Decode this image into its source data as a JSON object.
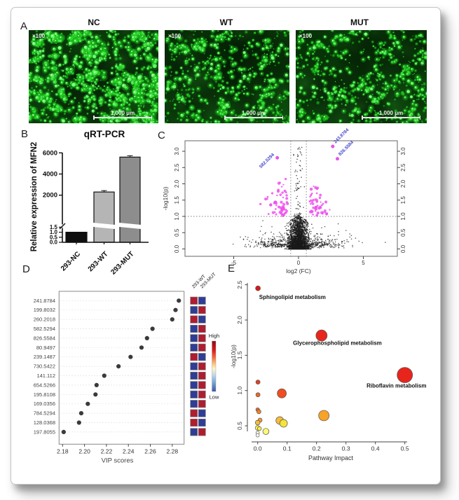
{
  "panel_labels": {
    "a": "A",
    "b": "B",
    "c": "C",
    "d": "D",
    "e": "E"
  },
  "panel_a": {
    "images": [
      {
        "title": "NC",
        "magnification": "×100",
        "scalebar": "1,000 μm",
        "seed": 11,
        "clusters": 130,
        "cluster_min": 2,
        "cluster_max": 12,
        "singles": 380,
        "brightness": 1.0
      },
      {
        "title": "WT",
        "magnification": "×100",
        "scalebar": "1,000 μm",
        "seed": 22,
        "clusters": 85,
        "cluster_min": 2,
        "cluster_max": 7,
        "singles": 300,
        "brightness": 0.85
      },
      {
        "title": "MUT",
        "magnification": "×100",
        "scalebar": "1,000 μm",
        "seed": 33,
        "clusters": 88,
        "cluster_min": 2,
        "cluster_max": 7,
        "singles": 300,
        "brightness": 0.85
      }
    ],
    "bg_dark": "#083808",
    "bg_light": "#0d4d0d",
    "dot_colors": [
      "#12b312",
      "#25d825",
      "#3cf23c",
      "#67ff67"
    ]
  },
  "chart_data": [
    {
      "id": "B",
      "type": "bar",
      "title": "qRT-PCR",
      "ylabel": "Relative expression of MFN2",
      "categories": [
        "293-NC",
        "293-WT",
        "293-MUT"
      ],
      "values": [
        1.0,
        2300,
        5600
      ],
      "errors": [
        0,
        40,
        120
      ],
      "bar_colors": [
        "#0f0f0f",
        "#b5b5b5",
        "#8d8d8d"
      ],
      "axis_break": {
        "lower_ticks": [
          "0.0",
          "0.5",
          "1.0",
          "1.5"
        ],
        "upper_ticks": [
          "2000",
          "4000",
          "6000"
        ],
        "lower_range": [
          0,
          1.5
        ],
        "upper_range": [
          2000,
          6000
        ]
      }
    },
    {
      "id": "C",
      "type": "scatter",
      "variant": "volcano",
      "xlabel": "log2 (FC)",
      "ylabel": "-log10(p)",
      "xticks": [
        "-5",
        "0",
        "5"
      ],
      "yticks": [
        "0.0",
        "0.5",
        "1.0",
        "1.5",
        "2.0",
        "2.5",
        "3.0"
      ],
      "xlim": [
        -8.76,
        7.63
      ],
      "ylim": [
        -0.22,
        3.32
      ],
      "thresholds": {
        "h_line_y": 1.0,
        "v_lines_x": [
          -0.6,
          0.6
        ]
      },
      "labeled_points": [
        {
          "label": "582.5294",
          "x": -1.64,
          "y": 2.8,
          "side": "left"
        },
        {
          "label": "243.8784",
          "x": 2.64,
          "y": 3.15,
          "side": "right"
        },
        {
          "label": "826.5584",
          "x": 3.0,
          "y": 2.77,
          "side": "right"
        }
      ],
      "colors": {
        "nonsig": "#1a1a1a",
        "sig": "#ee52ee",
        "label_text": "#4646cc"
      },
      "generated": {
        "seed": 7,
        "n_core": 2600,
        "n_mid": 700,
        "n_col": 90,
        "n_sig": 115
      }
    },
    {
      "id": "D",
      "type": "dot-heatmap",
      "xlabel": "VIP scores",
      "xticks": [
        "2.18",
        "2.20",
        "2.22",
        "2.24",
        "2.26",
        "2.28"
      ],
      "columns": [
        "293-WT",
        "293-MUT"
      ],
      "rows": [
        {
          "label": "241.8784",
          "vip": 2.286,
          "wt": "high",
          "mut": "low"
        },
        {
          "label": "199.8032",
          "vip": 2.283,
          "wt": "low",
          "mut": "high"
        },
        {
          "label": "260.2018",
          "vip": 2.28,
          "wt": "high",
          "mut": "low"
        },
        {
          "label": "582.5294",
          "vip": 2.262,
          "wt": "low",
          "mut": "high"
        },
        {
          "label": "826.5584",
          "vip": 2.257,
          "wt": "low",
          "mut": "high"
        },
        {
          "label": "80.9497",
          "vip": 2.252,
          "wt": "low",
          "mut": "high"
        },
        {
          "label": "239.1487",
          "vip": 2.242,
          "wt": "high",
          "mut": "low"
        },
        {
          "label": "730.5422",
          "vip": 2.231,
          "wt": "low",
          "mut": "high"
        },
        {
          "label": "141.112",
          "vip": 2.218,
          "wt": "low",
          "mut": "high"
        },
        {
          "label": "654.5266",
          "vip": 2.211,
          "wt": "low",
          "mut": "high"
        },
        {
          "label": "195.8108",
          "vip": 2.21,
          "wt": "low",
          "mut": "high"
        },
        {
          "label": "169.0356",
          "vip": 2.203,
          "wt": "low",
          "mut": "high"
        },
        {
          "label": "784.5294",
          "vip": 2.197,
          "wt": "high",
          "mut": "low"
        },
        {
          "label": "128.0368",
          "vip": 2.195,
          "wt": "high",
          "mut": "low"
        },
        {
          "label": "197.8055",
          "vip": 2.181,
          "wt": "low",
          "mut": "high"
        }
      ],
      "legend": {
        "high": "High",
        "low": "Low"
      },
      "colors": {
        "high": "#B01C30",
        "low": "#2F3D96",
        "dot": "#3a3a3a"
      }
    },
    {
      "id": "E",
      "type": "bubble",
      "xlabel": "Pathway Impact",
      "ylabel": "-log10(p)",
      "xticks": [
        "0.0",
        "0.1",
        "0.2",
        "0.3",
        "0.4",
        "0.5"
      ],
      "yticks": [
        "0.5",
        "1.0",
        "1.5",
        "2.0",
        "2.5"
      ],
      "points": [
        {
          "x": 0.001,
          "y": 2.45,
          "r": 3.5,
          "color": "#d7191c",
          "label": "Sphingolipid metabolism",
          "lx": 0.005,
          "ly": 2.3
        },
        {
          "x": 0.217,
          "y": 1.78,
          "r": 8,
          "color": "#e8251c",
          "label": "Glycerophospholipid metabolism",
          "lx": 0.12,
          "ly": 1.645
        },
        {
          "x": 0.5,
          "y": 1.22,
          "r": 11,
          "color": "#e8251c",
          "label": "Riboflavin metabolism",
          "lx": 0.37,
          "ly": 1.04
        },
        {
          "x": 0.001,
          "y": 1.12,
          "r": 3,
          "color": "#e2401f"
        },
        {
          "x": 0.082,
          "y": 0.96,
          "r": 6.5,
          "color": "#ee4e20"
        },
        {
          "x": 0.001,
          "y": 0.94,
          "r": 3,
          "color": "#ed6823"
        },
        {
          "x": 0.0,
          "y": 0.73,
          "r": 2.6,
          "color": "#ea6b25"
        },
        {
          "x": 0.004,
          "y": 0.7,
          "r": 3,
          "color": "#ef8426"
        },
        {
          "x": 0.008,
          "y": 0.58,
          "r": 3,
          "color": "#f1993b"
        },
        {
          "x": 0.0,
          "y": 0.545,
          "r": 3.4,
          "color": "#f6b93c"
        },
        {
          "x": 0.075,
          "y": 0.575,
          "r": 5.5,
          "color": "#f6bd38"
        },
        {
          "x": 0.088,
          "y": 0.535,
          "r": 5.5,
          "color": "#f6e339"
        },
        {
          "x": 0.225,
          "y": 0.645,
          "r": 7.5,
          "color": "#f9a228"
        },
        {
          "x": 0.0,
          "y": 0.47,
          "r": 3.4,
          "color": "#f9ee4e"
        },
        {
          "x": 0.006,
          "y": 0.46,
          "r": 2.8,
          "color": "#f9ee4e"
        },
        {
          "x": 0.028,
          "y": 0.42,
          "r": 4.4,
          "color": "#fdf773"
        },
        {
          "x": 0.0,
          "y": 0.4,
          "r": 2.4,
          "color": "#fdfbdc"
        },
        {
          "x": 0.0,
          "y": 0.365,
          "r": 2.4,
          "color": "#ffffff"
        }
      ]
    }
  ]
}
